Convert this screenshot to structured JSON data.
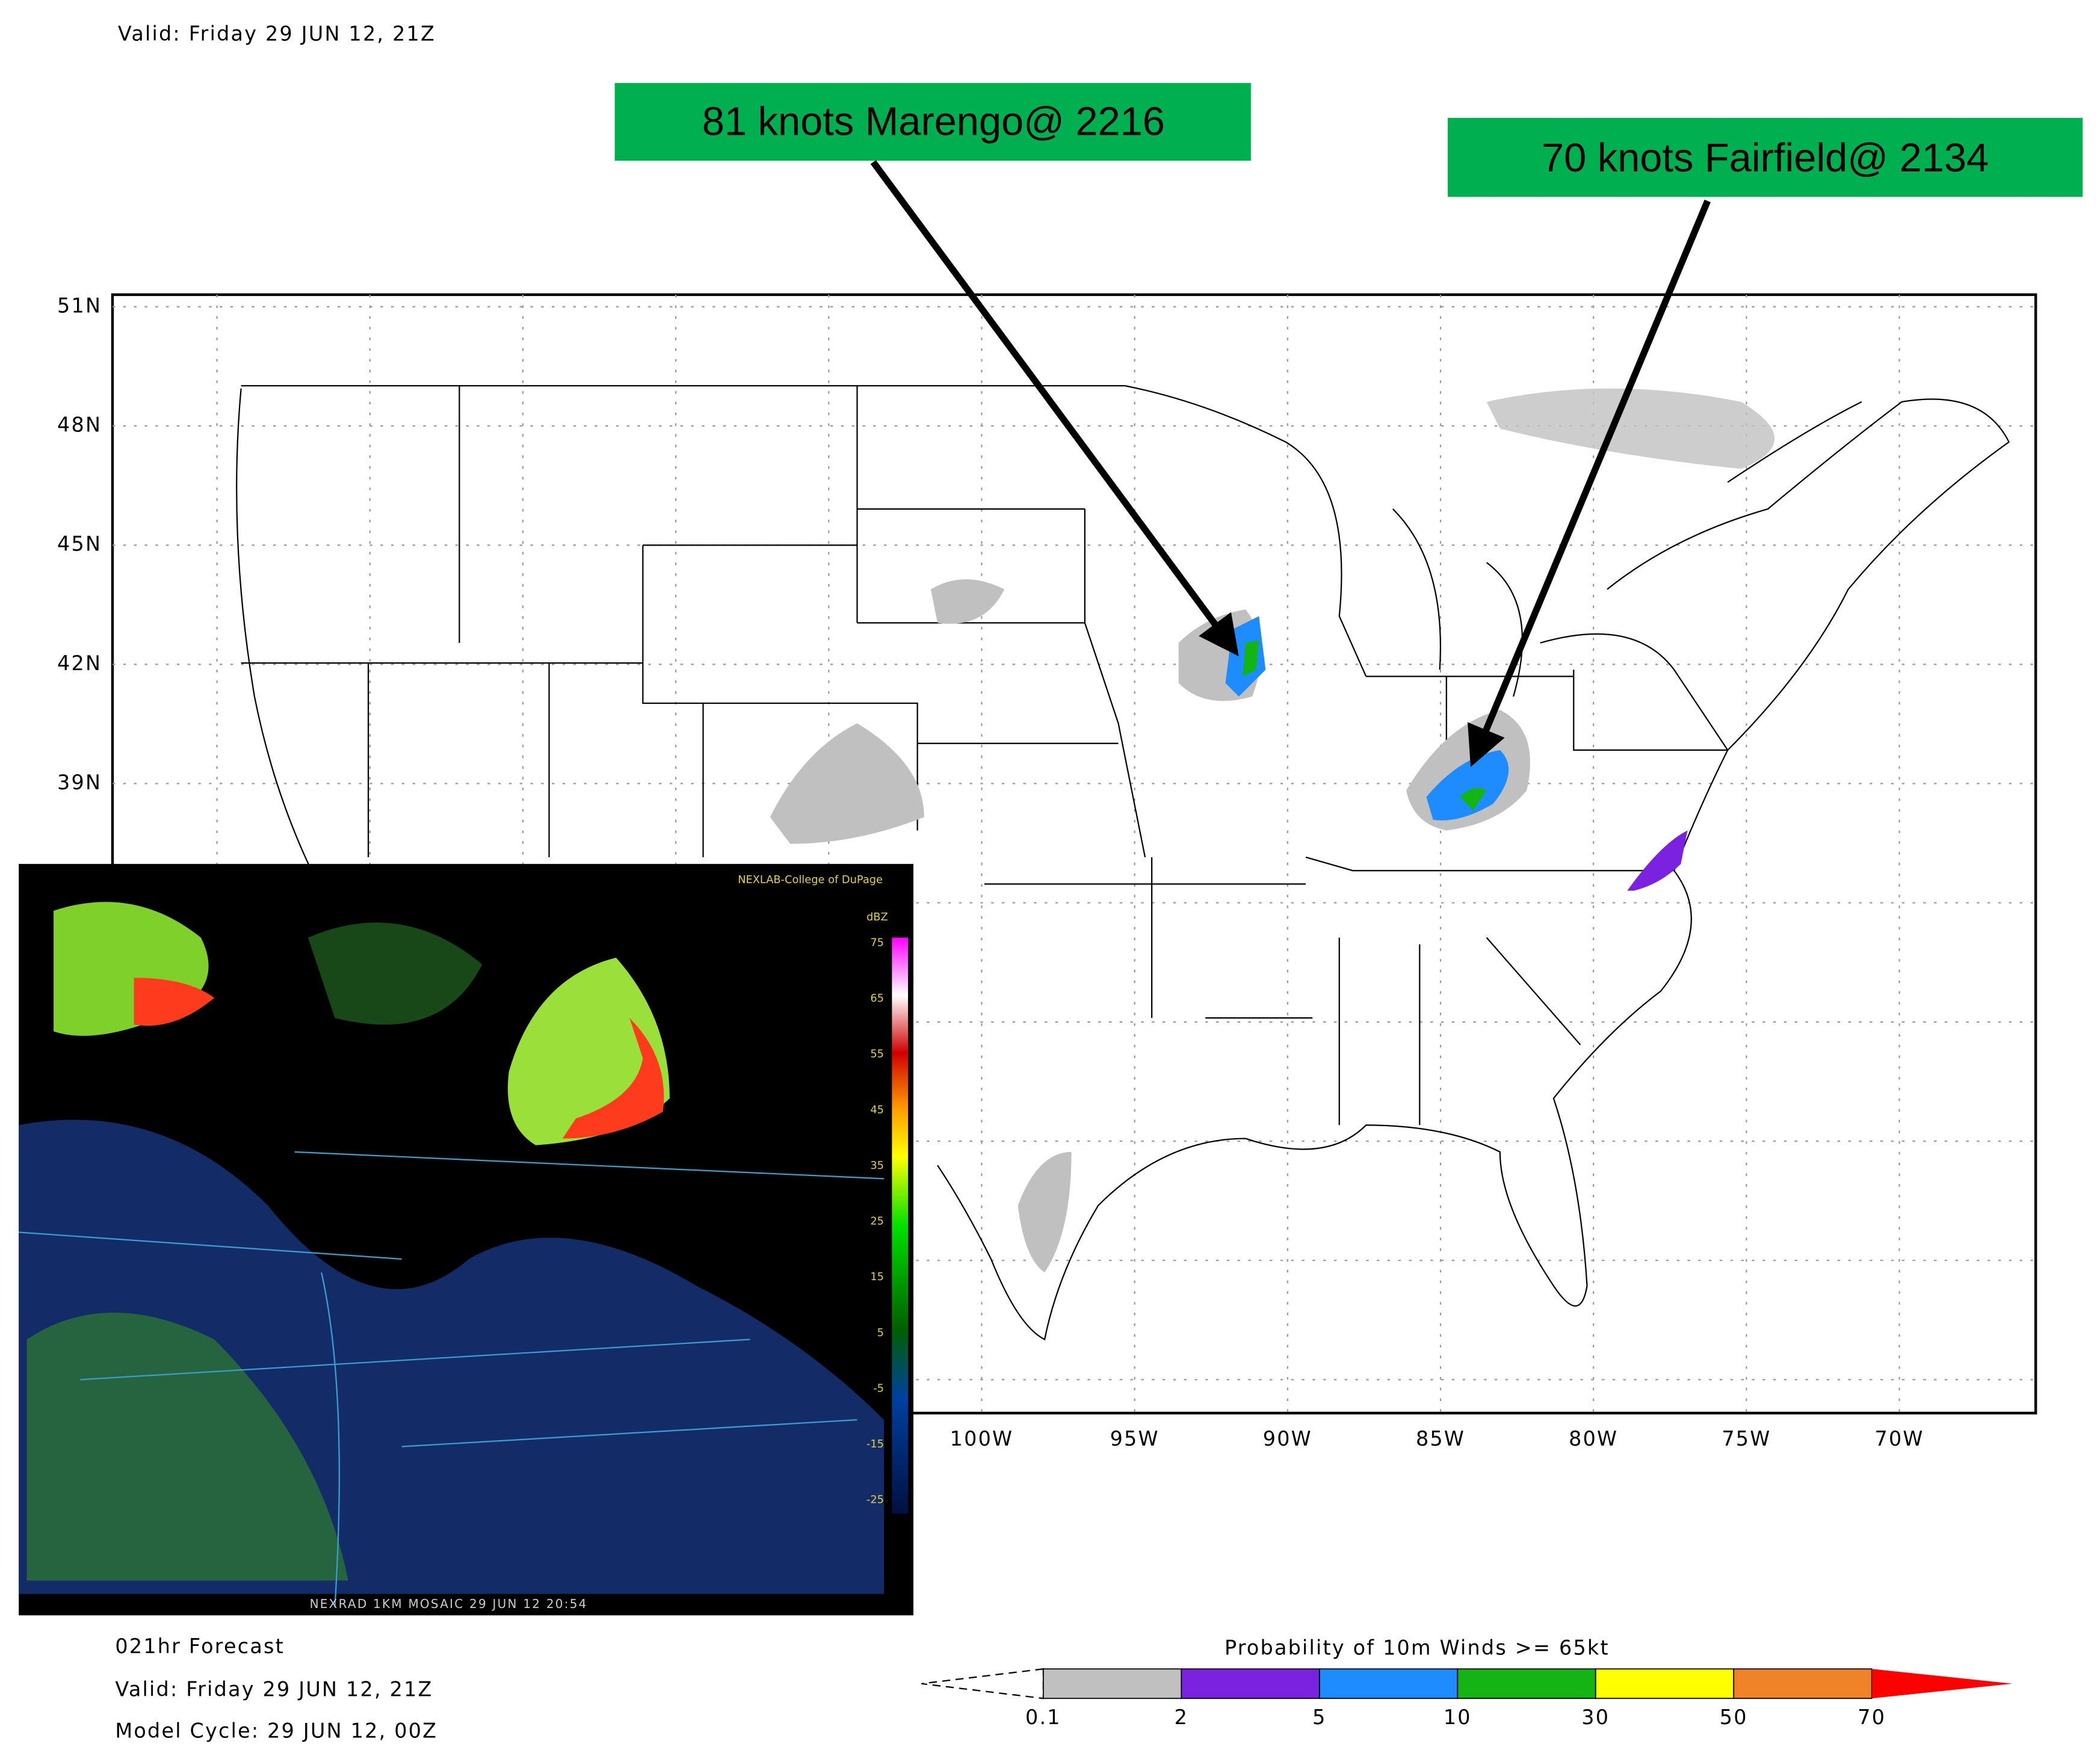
{
  "header": {
    "valid": "Valid: Friday 29 JUN 12, 21Z"
  },
  "annotations": [
    {
      "label": "81 knots Marengo@ 2216"
    },
    {
      "label": "70 knots Fairfield@ 2134"
    }
  ],
  "map": {
    "lat_labels": [
      "51N",
      "48N",
      "45N",
      "42N",
      "39N"
    ],
    "lon_labels": [
      "100W",
      "95W",
      "90W",
      "85W",
      "80W",
      "75W",
      "70W"
    ]
  },
  "inset": {
    "credit": "NEXLAB-College of DuPage",
    "unit": "dBZ",
    "scale": [
      75,
      65,
      55,
      45,
      35,
      25,
      15,
      5,
      -5,
      -15,
      -25
    ],
    "caption": "NEXRAD 1KM MOSAIC 29 JUN 12 20:54"
  },
  "footer": {
    "forecast": "021hr Forecast",
    "valid": "Valid: Friday 29 JUN 12, 21Z",
    "cycle": "Model Cycle:  29 JUN 12, 00Z"
  },
  "colorbar": {
    "title": "Probability of 10m Winds >= 65kt",
    "ticks": [
      0.1,
      2,
      5,
      10,
      30,
      50,
      70
    ],
    "colors": [
      "#c0c0c0",
      "#7a22e0",
      "#1e8cff",
      "#14b414",
      "#ffff00",
      "#f08228",
      "#ff0000"
    ]
  }
}
